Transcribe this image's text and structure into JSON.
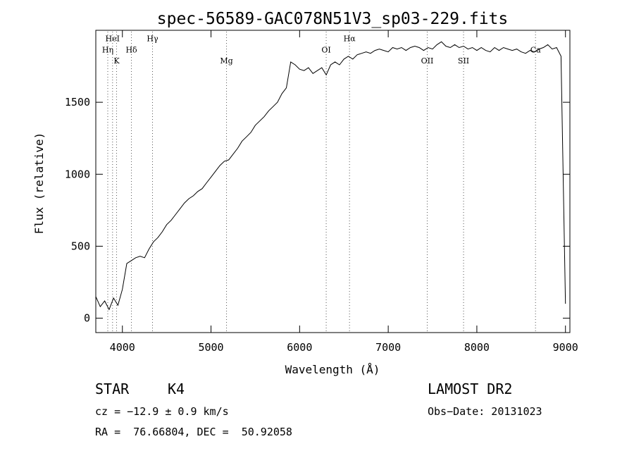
{
  "chart_data": {
    "type": "line",
    "title": "spec-56589-GAC078N51V3_sp03-229.fits",
    "xlabel": "Wavelength (Å)",
    "ylabel": "Flux (relative)",
    "xlim": [
      3700,
      9050
    ],
    "ylim": [
      -100,
      2000
    ],
    "x_ticks": [
      4000,
      5000,
      6000,
      7000,
      8000,
      9000
    ],
    "y_ticks": [
      0,
      500,
      1000,
      1500
    ],
    "grid": false,
    "series": [
      {
        "x": [
          3700,
          3750,
          3800,
          3850,
          3900,
          3950,
          4000,
          4050,
          4100,
          4150,
          4200,
          4250,
          4300,
          4350,
          4400,
          4450,
          4500,
          4550,
          4600,
          4650,
          4700,
          4750,
          4800,
          4850,
          4900,
          4950,
          5000,
          5050,
          5100,
          5150,
          5200,
          5250,
          5300,
          5350,
          5400,
          5450,
          5500,
          5550,
          5600,
          5650,
          5700,
          5750,
          5800,
          5850,
          5900,
          5950,
          6000,
          6050,
          6100,
          6150,
          6200,
          6250,
          6300,
          6350,
          6400,
          6450,
          6500,
          6550,
          6600,
          6650,
          6700,
          6750,
          6800,
          6850,
          6900,
          6950,
          7000,
          7050,
          7100,
          7150,
          7200,
          7250,
          7300,
          7350,
          7400,
          7450,
          7500,
          7550,
          7600,
          7650,
          7700,
          7750,
          7800,
          7850,
          7900,
          7950,
          8000,
          8050,
          8100,
          8150,
          8200,
          8250,
          8300,
          8350,
          8400,
          8450,
          8500,
          8550,
          8600,
          8650,
          8700,
          8750,
          8800,
          8850,
          8900,
          8950,
          9000
        ],
        "y": [
          150,
          80,
          120,
          60,
          140,
          90,
          200,
          380,
          400,
          420,
          430,
          420,
          480,
          530,
          560,
          600,
          650,
          680,
          720,
          760,
          800,
          830,
          850,
          880,
          900,
          940,
          980,
          1020,
          1060,
          1090,
          1100,
          1140,
          1180,
          1230,
          1260,
          1290,
          1340,
          1370,
          1400,
          1440,
          1470,
          1500,
          1560,
          1600,
          1780,
          1760,
          1730,
          1720,
          1740,
          1700,
          1720,
          1740,
          1690,
          1760,
          1780,
          1760,
          1800,
          1820,
          1800,
          1830,
          1840,
          1850,
          1840,
          1860,
          1870,
          1860,
          1850,
          1880,
          1870,
          1880,
          1860,
          1880,
          1890,
          1880,
          1860,
          1880,
          1870,
          1900,
          1920,
          1890,
          1880,
          1900,
          1880,
          1890,
          1870,
          1880,
          1860,
          1880,
          1860,
          1850,
          1880,
          1860,
          1880,
          1870,
          1860,
          1870,
          1850,
          1840,
          1860,
          1850,
          1870,
          1880,
          1900,
          1870,
          1880,
          1820,
          100
        ]
      }
    ],
    "line_markers": [
      {
        "label": "HeI",
        "wavelength": 3889,
        "label_y": 1925
      },
      {
        "label": "Hη",
        "wavelength": 3835,
        "label_y": 1845
      },
      {
        "label": "K",
        "wavelength": 3934,
        "label_y": 1770
      },
      {
        "label": "Hδ",
        "wavelength": 4102,
        "label_y": 1845
      },
      {
        "label": "Hγ",
        "wavelength": 4340,
        "label_y": 1925
      },
      {
        "label": "Mg",
        "wavelength": 5175,
        "label_y": 1770
      },
      {
        "label": "OI",
        "wavelength": 6300,
        "label_y": 1845
      },
      {
        "label": "Hα",
        "wavelength": 6563,
        "label_y": 1925
      },
      {
        "label": "OII",
        "wavelength": 7440,
        "label_y": 1770
      },
      {
        "label": "SII",
        "wavelength": 7850,
        "label_y": 1770
      },
      {
        "label": "Ca",
        "wavelength": 8662,
        "label_y": 1845
      }
    ]
  },
  "info": {
    "class": "STAR",
    "subclass": "K4",
    "survey": "LAMOST DR2",
    "cz": "cz = −12.9 ± 0.9 km/s",
    "obs_date": "Obs−Date: 20131023",
    "coords": "RA =  76.66804, DEC =  50.92058"
  }
}
